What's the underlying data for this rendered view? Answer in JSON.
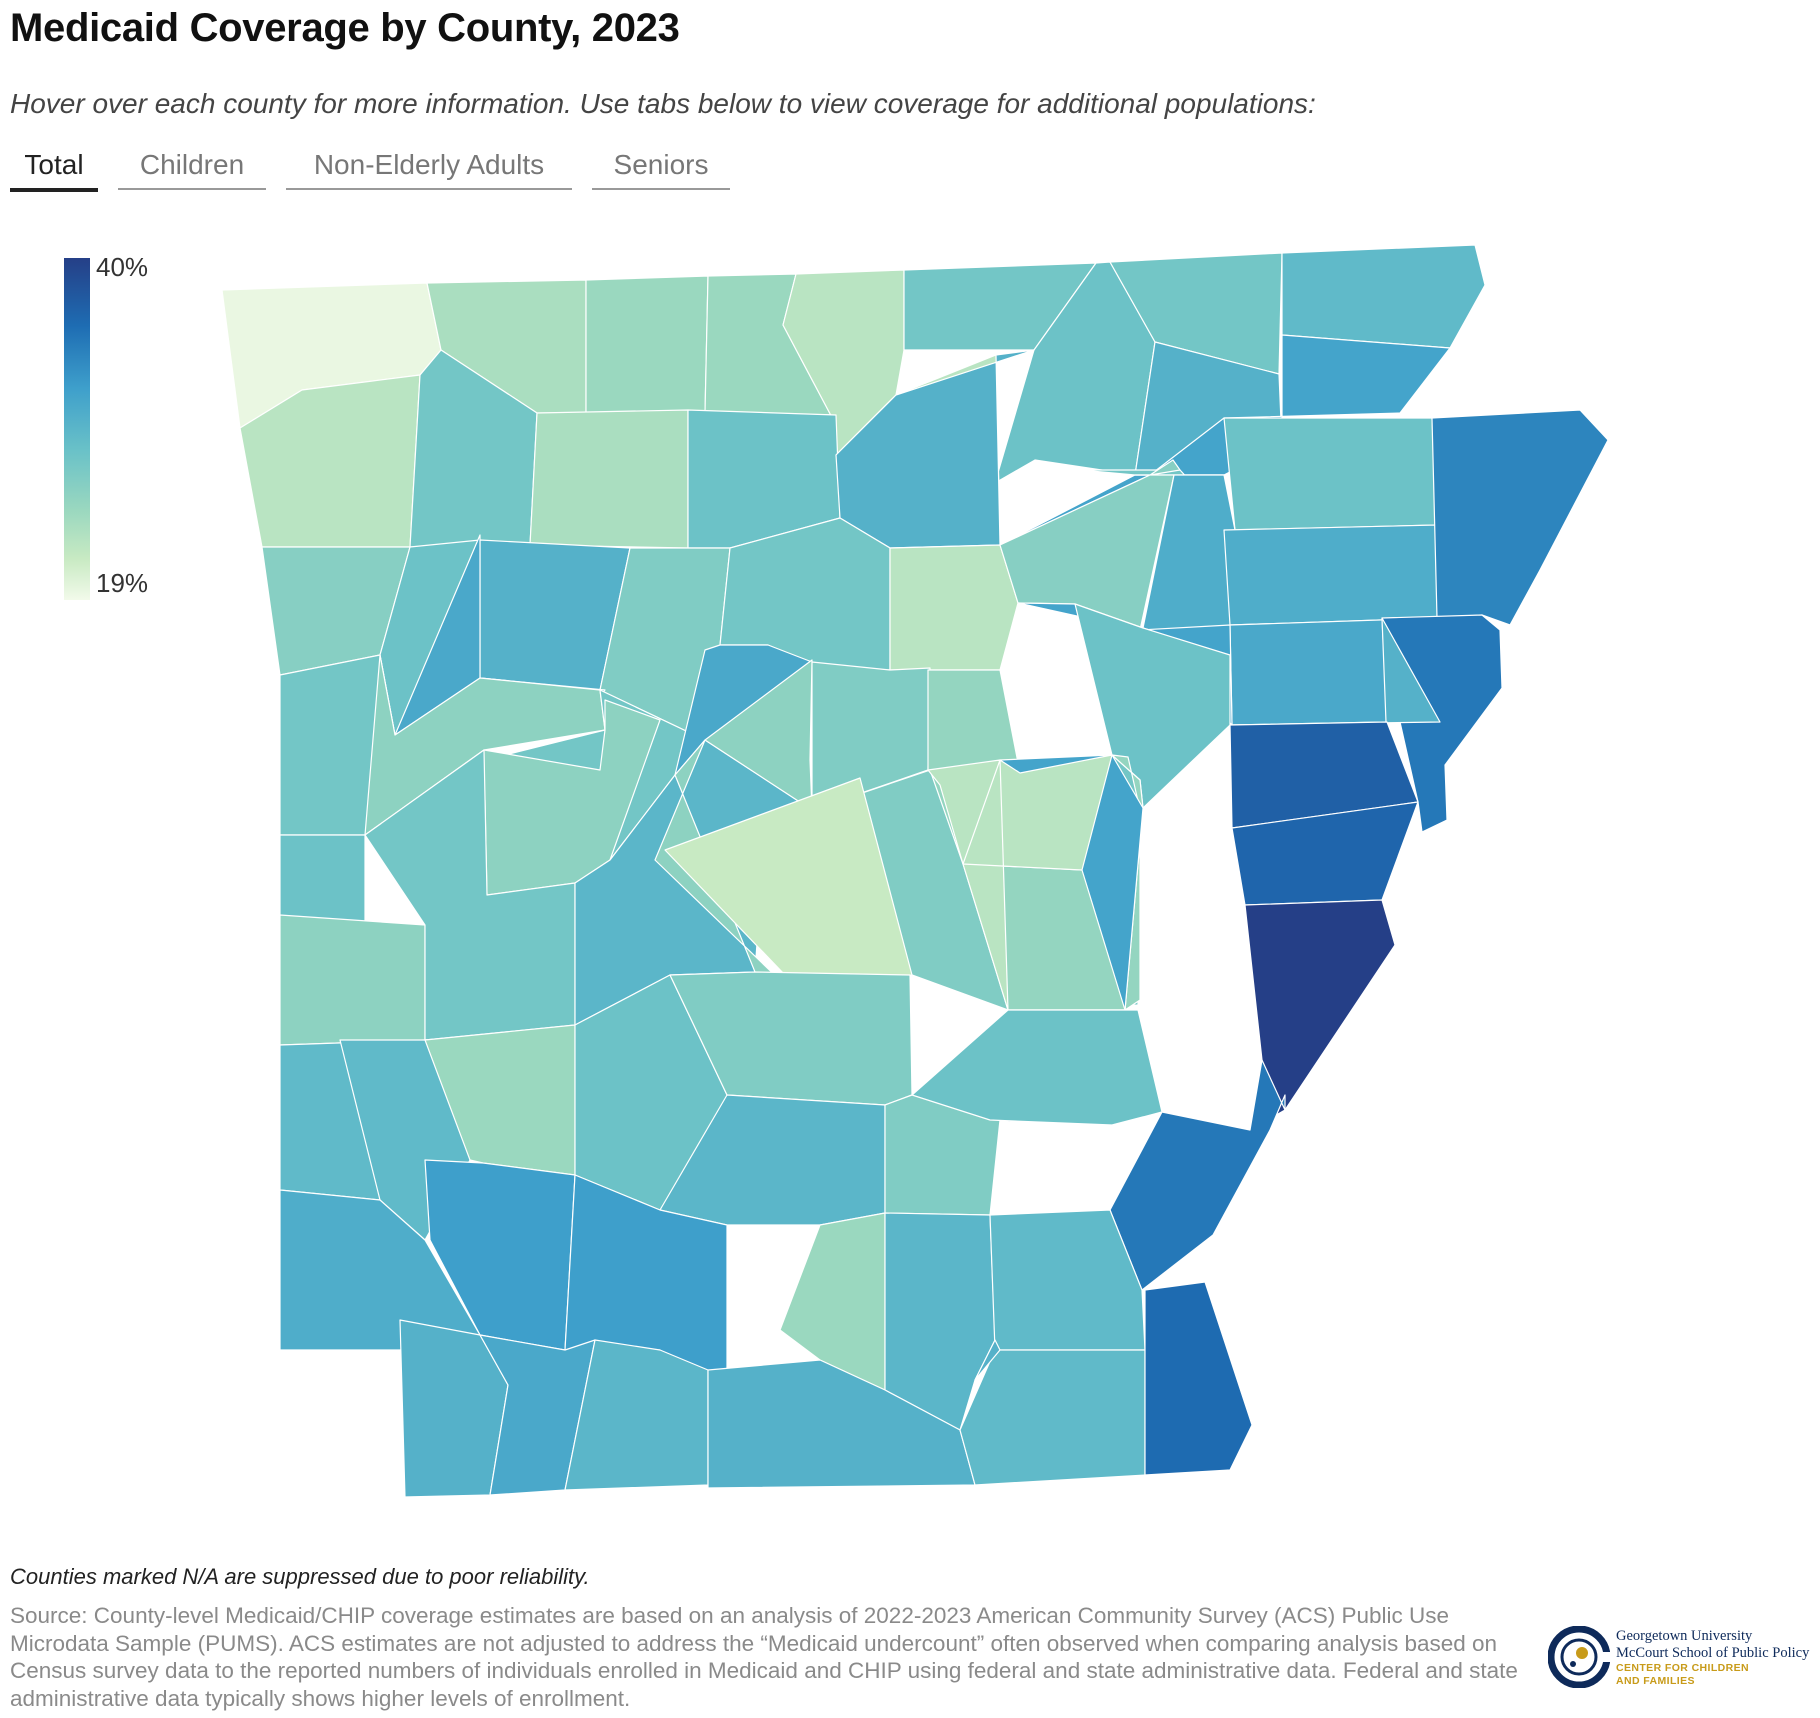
{
  "title": "Medicaid Coverage by County, 2023",
  "subtitle": "Hover over each county for more information. Use tabs below to view coverage for additional populations:",
  "tabs": [
    {
      "label": "Total",
      "active": true
    },
    {
      "label": "Children",
      "active": false
    },
    {
      "label": "Non-Elderly Adults",
      "active": false
    },
    {
      "label": "Seniors",
      "active": false
    }
  ],
  "legend": {
    "max_label": "40%",
    "min_label": "19%",
    "max": 40,
    "min": 19
  },
  "colors": {
    "darkest": "#253f87",
    "dark_blue": "#1e6db3",
    "mid_blue": "#3e9fcb",
    "teal": "#69c1c8",
    "light_teal": "#9bd8bf",
    "pale_green": "#c8eac3",
    "lightest": "#f2faea",
    "border": "#ffffff",
    "logo_navy": "#0e2a5a",
    "logo_gold": "#c89b1a"
  },
  "footnote": "Counties marked N/A are suppressed due to poor reliability.",
  "source": "Source: County-level Medicaid/CHIP coverage estimates are based on an analysis of 2022-2023 American Community Survey (ACS) Public Use Microdata Sample (PUMS). ACS estimates are not adjusted to address the “Medicaid undercount” often observed when comparing analysis based on Census survey data to the reported numbers of individuals enrolled in Medicaid and CHIP using federal and state administrative data. Federal and state administrative data typically shows higher levels of enrollment.",
  "logo": {
    "line1": "Georgetown University",
    "line2": "McCourt School of Public Policy",
    "line3": "CENTER FOR CHILDREN",
    "line4": "AND FAMILIES"
  },
  "counties": [
    {
      "id": "c01",
      "value": 19.5
    },
    {
      "id": "c02",
      "value": 23.5
    },
    {
      "id": "c03",
      "value": 24.5
    },
    {
      "id": "c04",
      "value": 24.5
    },
    {
      "id": "c05",
      "value": 22.5
    },
    {
      "id": "c06",
      "value": 27.5
    },
    {
      "id": "c07",
      "value": 28.0
    },
    {
      "id": "c08",
      "value": 27.5
    },
    {
      "id": "c09",
      "value": 22.5
    },
    {
      "id": "c10",
      "value": 27.5
    },
    {
      "id": "c11",
      "value": 23.5
    },
    {
      "id": "c12",
      "value": 28.0
    },
    {
      "id": "c13",
      "value": 22.5
    },
    {
      "id": "c14",
      "value": 30.0
    },
    {
      "id": "c15",
      "value": 30.0
    },
    {
      "id": "c16",
      "value": 29.0
    },
    {
      "id": "c17",
      "value": 26.0
    },
    {
      "id": "c18",
      "value": 28.0
    },
    {
      "id": "c19",
      "value": 30.0
    },
    {
      "id": "c20",
      "value": 26.5
    },
    {
      "id": "c21",
      "value": 27.5
    },
    {
      "id": "c22",
      "value": 31.5
    },
    {
      "id": "c23",
      "value": 28.0
    },
    {
      "id": "c24",
      "value": 27.5
    },
    {
      "id": "c25",
      "value": 22.5
    },
    {
      "id": "c26",
      "value": 26.0
    },
    {
      "id": "c27",
      "value": 30.5
    },
    {
      "id": "c28",
      "value": 30.5
    },
    {
      "id": "c29",
      "value": 34.0
    },
    {
      "id": "c30",
      "value": 31.0
    },
    {
      "id": "c31",
      "value": 27.5
    },
    {
      "id": "c32",
      "value": 31.0
    },
    {
      "id": "c33",
      "value": 25.5
    },
    {
      "id": "c34",
      "value": 27.5
    },
    {
      "id": "c35",
      "value": 31.0
    },
    {
      "id": "c36",
      "value": 31.5
    },
    {
      "id": "c37",
      "value": 35.0
    },
    {
      "id": "c38",
      "value": 26.5
    },
    {
      "id": "c39",
      "value": 25.0
    },
    {
      "id": "c40",
      "value": 28.0
    },
    {
      "id": "c41",
      "value": 30.0
    },
    {
      "id": "c42",
      "value": 27.5
    },
    {
      "id": "c43",
      "value": 25.5
    },
    {
      "id": "c44",
      "value": 25.0
    },
    {
      "id": "c45",
      "value": 31.5
    },
    {
      "id": "c46",
      "value": 37.0
    },
    {
      "id": "c47",
      "value": 28.0
    },
    {
      "id": "c48",
      "value": 25.5
    },
    {
      "id": "c49",
      "value": 27.5
    },
    {
      "id": "c50",
      "value": 29.5
    },
    {
      "id": "c51",
      "value": 25.5
    },
    {
      "id": "c52",
      "value": 36.5
    },
    {
      "id": "c53",
      "value": 26.5
    },
    {
      "id": "c54",
      "value": 21.5
    },
    {
      "id": "c55",
      "value": 25.0
    },
    {
      "id": "c56",
      "value": 33.5
    },
    {
      "id": "c57",
      "value": 22.5
    },
    {
      "id": "c58",
      "value": 40.0
    },
    {
      "id": "c59",
      "value": 29.0
    },
    {
      "id": "c60",
      "value": 29.0
    },
    {
      "id": "c61",
      "value": 24.5
    },
    {
      "id": "c62",
      "value": 28.0
    },
    {
      "id": "c63",
      "value": 26.5
    },
    {
      "id": "c64",
      "value": 29.5
    },
    {
      "id": "c65",
      "value": 26.5
    },
    {
      "id": "c66",
      "value": 28.0
    },
    {
      "id": "c67",
      "value": 35.0
    },
    {
      "id": "c68",
      "value": 32.0
    },
    {
      "id": "c69",
      "value": 32.0
    },
    {
      "id": "c70",
      "value": 24.5
    },
    {
      "id": "c71",
      "value": 29.5
    },
    {
      "id": "c72",
      "value": 29.0
    },
    {
      "id": "c73",
      "value": 30.5
    },
    {
      "id": "c74",
      "value": 30.0
    },
    {
      "id": "c75",
      "value": 31.0
    },
    {
      "id": "c76",
      "value": 29.5
    },
    {
      "id": "c77",
      "value": 30.0
    },
    {
      "id": "c78",
      "value": 29.0
    },
    {
      "id": "c79",
      "value": 30.0
    },
    {
      "id": "c80",
      "value": 36.0
    }
  ]
}
